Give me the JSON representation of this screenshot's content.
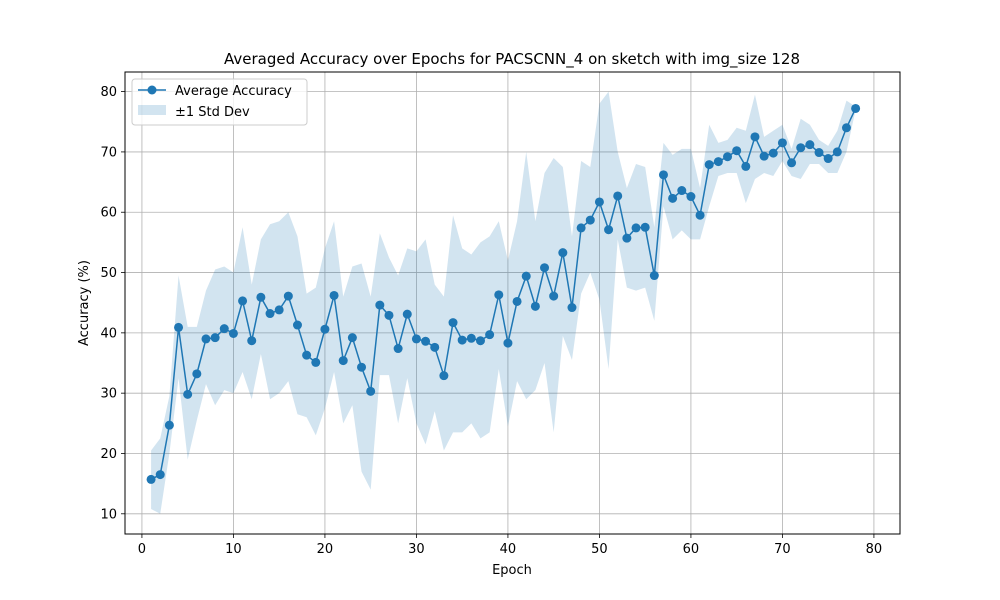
{
  "chart_data": {
    "type": "line",
    "title": "Averaged Accuracy over Epochs for PACSCNN_4 on sketch with img_size 128",
    "xlabel": "Epoch",
    "ylabel": "Accuracy (%)",
    "xlim": [
      -1.85,
      82.85
    ],
    "ylim": [
      6.65,
      83.25
    ],
    "xticks": [
      0,
      10,
      20,
      30,
      40,
      50,
      60,
      70,
      80
    ],
    "yticks": [
      10,
      20,
      30,
      40,
      50,
      60,
      70,
      80
    ],
    "grid": true,
    "legend_position": "upper left",
    "colors": {
      "line": "#1f77b4",
      "band": "#1f77b4",
      "band_opacity": 0.2,
      "grid": "#b0b0b0"
    },
    "series": [
      {
        "name": "Average Accuracy",
        "x": [
          1,
          2,
          3,
          4,
          5,
          6,
          7,
          8,
          9,
          10,
          11,
          12,
          13,
          14,
          15,
          16,
          17,
          18,
          19,
          20,
          21,
          22,
          23,
          24,
          25,
          26,
          27,
          28,
          29,
          30,
          31,
          32,
          33,
          34,
          35,
          36,
          37,
          38,
          39,
          40,
          41,
          42,
          43,
          44,
          45,
          46,
          47,
          48,
          49,
          50,
          51,
          52,
          53,
          54,
          55,
          56,
          57,
          58,
          59,
          60,
          61,
          62,
          63,
          64,
          65,
          66,
          67,
          68,
          69,
          70,
          71,
          72,
          73,
          74,
          75,
          76,
          77,
          78
        ],
        "values": [
          15.7,
          16.5,
          24.7,
          40.9,
          29.8,
          33.2,
          39.0,
          39.2,
          40.7,
          39.9,
          45.3,
          38.7,
          45.9,
          43.2,
          43.8,
          46.1,
          41.3,
          36.3,
          35.1,
          40.6,
          46.2,
          35.4,
          39.2,
          34.3,
          30.3,
          44.6,
          42.9,
          37.4,
          43.1,
          39.0,
          38.6,
          37.6,
          32.9,
          41.7,
          38.8,
          39.1,
          38.7,
          39.7,
          46.3,
          38.3,
          45.2,
          49.4,
          44.4,
          50.8,
          46.1,
          53.3,
          44.2,
          57.4,
          58.7,
          61.7,
          57.1,
          62.7,
          55.7,
          57.4,
          57.5,
          49.5,
          66.2,
          62.3,
          63.6,
          62.6,
          59.5,
          67.9,
          68.4,
          69.2,
          70.2,
          67.6,
          72.5,
          69.3,
          69.8,
          71.5,
          68.2,
          70.7,
          71.2,
          69.9,
          68.9,
          70.0,
          74.0,
          77.2
        ]
      },
      {
        "name": "±1 Std Dev",
        "upper": [
          20.5,
          22.5,
          29.5,
          49.5,
          41.0,
          41.0,
          47.0,
          50.5,
          51.0,
          50.0,
          57.5,
          48.0,
          55.5,
          58.0,
          58.5,
          60.0,
          56.0,
          46.5,
          47.5,
          54.0,
          58.5,
          46.0,
          51.0,
          51.5,
          46.0,
          56.5,
          52.5,
          49.5,
          54.0,
          53.5,
          55.5,
          48.0,
          46.0,
          59.5,
          54.0,
          53.0,
          55.0,
          56.0,
          58.5,
          52.0,
          58.5,
          70.0,
          58.5,
          66.5,
          69.0,
          67.5,
          56.0,
          68.5,
          67.5,
          78.0,
          80.0,
          70.0,
          64.0,
          68.0,
          67.5,
          57.5,
          71.5,
          69.5,
          70.5,
          70.5,
          64.0,
          74.5,
          71.5,
          72.0,
          74.0,
          73.5,
          79.5,
          72.5,
          73.5,
          74.5,
          70.5,
          75.5,
          74.5,
          72.0,
          71.0,
          73.5,
          78.5,
          77.5
        ],
        "lower": [
          10.8,
          10.0,
          20.0,
          32.5,
          19.0,
          25.5,
          31.5,
          28.0,
          30.5,
          30.0,
          33.5,
          29.0,
          36.5,
          29.0,
          30.0,
          32.0,
          26.5,
          26.0,
          23.0,
          27.5,
          33.5,
          25.0,
          28.0,
          17.0,
          14.0,
          33.0,
          33.0,
          25.0,
          32.5,
          25.0,
          21.5,
          27.0,
          20.5,
          23.5,
          23.5,
          25.0,
          22.5,
          23.5,
          34.0,
          24.5,
          32.0,
          29.0,
          30.5,
          35.0,
          23.5,
          39.5,
          35.5,
          46.5,
          50.0,
          45.5,
          34.0,
          55.5,
          47.5,
          47.0,
          47.5,
          42.0,
          61.0,
          55.5,
          57.0,
          55.5,
          55.5,
          61.0,
          66.0,
          66.5,
          66.5,
          61.5,
          65.5,
          66.5,
          66.0,
          68.5,
          66.0,
          65.5,
          68.0,
          68.0,
          66.5,
          66.5,
          70.0,
          77.0
        ]
      }
    ]
  }
}
